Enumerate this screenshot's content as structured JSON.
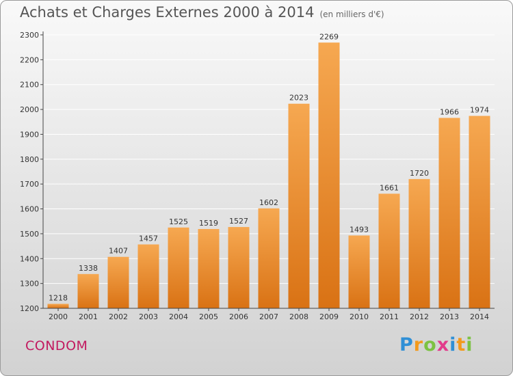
{
  "header": {
    "title": "Achats et Charges Externes 2000 à 2014",
    "unit": "(en milliers d'€)"
  },
  "footer": {
    "commune": "CONDOM",
    "logo_letters": [
      {
        "ch": "P",
        "color": "#2f8fd6"
      },
      {
        "ch": "r",
        "color": "#f39a1c"
      },
      {
        "ch": "o",
        "color": "#7cc243"
      },
      {
        "ch": "x",
        "color": "#e23a8b"
      },
      {
        "ch": "i",
        "color": "#2f8fd6"
      },
      {
        "ch": "t",
        "color": "#f39a1c"
      },
      {
        "ch": "i",
        "color": "#7cc243"
      }
    ]
  },
  "colors": {
    "bar_light": "#f6a851",
    "bar_dark": "#d97214",
    "grid": "#ffffff",
    "axis": "#444444"
  },
  "chart_data": {
    "type": "bar",
    "title": "Achats et Charges Externes 2000 à 2014",
    "subtitle": "(en milliers d'€)",
    "categories": [
      "2000",
      "2001",
      "2002",
      "2003",
      "2004",
      "2005",
      "2006",
      "2007",
      "2008",
      "2009",
      "2010",
      "2011",
      "2012",
      "2013",
      "2014"
    ],
    "values": [
      1218,
      1338,
      1407,
      1457,
      1525,
      1519,
      1527,
      1602,
      2023,
      2269,
      1493,
      1661,
      1720,
      1966,
      1974
    ],
    "ylim": [
      1200,
      2300
    ],
    "yticks": [
      1200,
      1300,
      1400,
      1500,
      1600,
      1700,
      1800,
      1900,
      2000,
      2100,
      2200,
      2300
    ],
    "grid": true,
    "xlabel": "",
    "ylabel": ""
  }
}
